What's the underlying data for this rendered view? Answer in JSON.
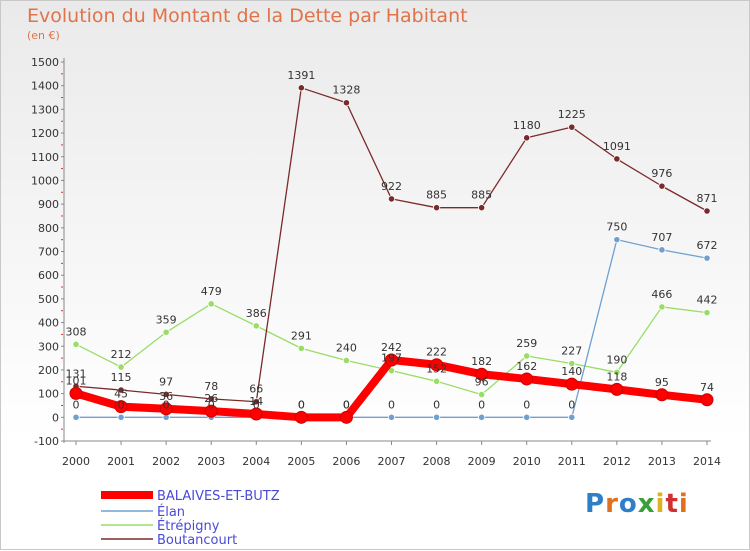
{
  "title": "Evolution du Montant de la Dette par Habitant",
  "subtitle": "(en €)",
  "logo_text": "Proxiti",
  "chart_data": {
    "type": "line",
    "x": [
      "2000",
      "2001",
      "2002",
      "2003",
      "2004",
      "2005",
      "2006",
      "2007",
      "2008",
      "2009",
      "2010",
      "2011",
      "2012",
      "2013",
      "2014"
    ],
    "ylim": [
      -100,
      1500
    ],
    "yticks": [
      -100,
      0,
      100,
      200,
      300,
      400,
      500,
      600,
      700,
      800,
      900,
      1000,
      1100,
      1200,
      1300,
      1400,
      1500
    ],
    "grid": false,
    "legend_position": "bottom-left",
    "series": [
      {
        "name": "BALAIVES-ET-BUTZ",
        "color": "#ff0000",
        "values": [
          101,
          45,
          36,
          26,
          14,
          0,
          0,
          242,
          222,
          182,
          162,
          140,
          118,
          95,
          74
        ]
      },
      {
        "name": "Élan",
        "color": "#6fa0d0",
        "values": [
          0,
          0,
          0,
          0,
          0,
          0,
          0,
          0,
          0,
          0,
          0,
          0,
          750,
          707,
          672
        ]
      },
      {
        "name": "Étrépigny",
        "color": "#99dd66",
        "values": [
          308,
          212,
          359,
          479,
          386,
          291,
          240,
          197,
          152,
          96,
          259,
          227,
          190,
          466,
          442
        ]
      },
      {
        "name": "Boutancourt",
        "color": "#7a2a2a",
        "values": [
          131,
          115,
          97,
          78,
          66,
          1391,
          1328,
          922,
          885,
          885,
          1180,
          1225,
          1091,
          976,
          871
        ]
      }
    ]
  }
}
